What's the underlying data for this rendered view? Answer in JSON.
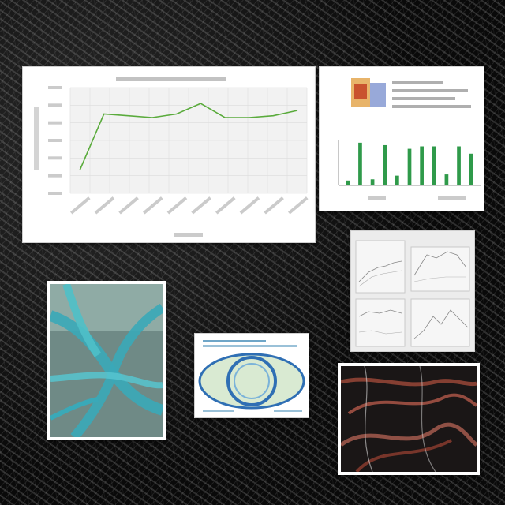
{
  "scene": {
    "background": "dark-fibrous-texture",
    "colors": {
      "line": "#5aab3c",
      "bar": "#2f9a4a",
      "plot_bg": "#f2f2f2",
      "teal": "#3aa9b8",
      "vein": "#a04a3a"
    }
  },
  "cards": [
    {
      "name": "line-chart-card",
      "kind": "line-chart"
    },
    {
      "name": "bar-chart-card",
      "kind": "bar-chart-with-photo"
    },
    {
      "name": "four-panel-plots-card",
      "kind": "plot-grid"
    },
    {
      "name": "teal-branches-card",
      "kind": "micrograph-teal"
    },
    {
      "name": "eye-diagram-card",
      "kind": "eye-diagram"
    },
    {
      "name": "red-fibers-card",
      "kind": "micrograph-red"
    }
  ],
  "chart_data": [
    {
      "type": "line",
      "x": [
        1,
        2,
        3,
        4,
        5,
        6,
        7,
        8,
        9,
        10
      ],
      "values": [
        1.3,
        4.5,
        4.4,
        4.3,
        4.5,
        5.1,
        4.3,
        4.3,
        4.4,
        4.7
      ],
      "ylim": [
        0,
        6
      ],
      "grid": true
    },
    {
      "type": "bar",
      "values": [
        0.4,
        3.5,
        0.5,
        3.3,
        0.8,
        3.0,
        3.2,
        3.2,
        0.9,
        3.2,
        2.6
      ],
      "ylim": [
        0,
        6
      ],
      "grid": false
    }
  ]
}
